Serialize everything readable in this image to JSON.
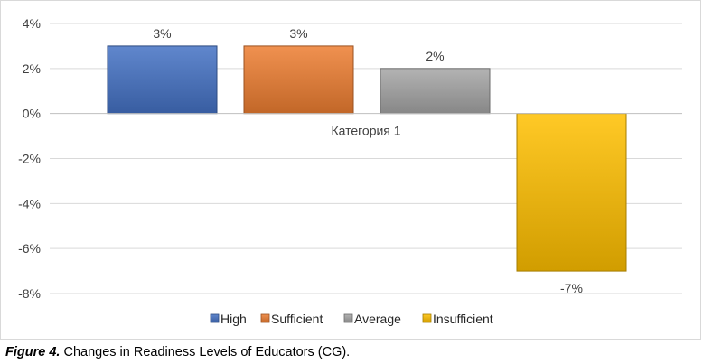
{
  "chart_data": {
    "type": "bar",
    "title": "",
    "categories": [
      "Категория 1"
    ],
    "series": [
      {
        "name": "High",
        "values": [
          3
        ],
        "label": "3%",
        "color": "#4472C4"
      },
      {
        "name": "Sufficient",
        "values": [
          3
        ],
        "label": "3%",
        "color": "#ED7D31"
      },
      {
        "name": "Average",
        "values": [
          2
        ],
        "label": "2%",
        "color": "#A5A5A5"
      },
      {
        "name": "Insufficient",
        "values": [
          -7
        ],
        "label": "-7%",
        "color": "#FFC000"
      }
    ],
    "y_ticks": [
      "4%",
      "2%",
      "0%",
      "-2%",
      "-4%",
      "-6%",
      "-8%"
    ],
    "ylim": [
      -8,
      4
    ],
    "y_step": 2,
    "xlabel": "",
    "ylabel": "",
    "grid": true,
    "legend_position": "bottom"
  },
  "caption": {
    "label": "Figure 4.",
    "text": " Changes in Readiness Levels of Educators (CG)."
  }
}
